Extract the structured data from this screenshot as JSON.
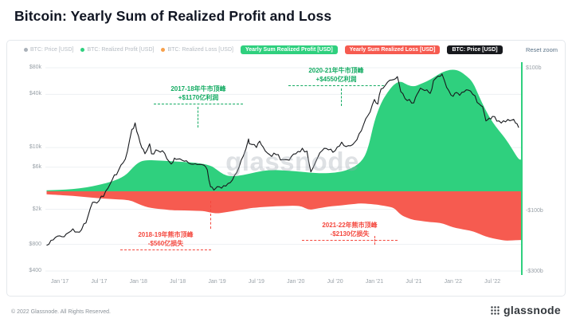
{
  "page": {
    "title": "Bitcoin: Yearly Sum of Realized Profit and Loss",
    "footer_left": "© 2022 Glassnode. All Rights Reserved.",
    "brand": "glassnode"
  },
  "toolbar": {
    "reset_zoom": "Reset zoom"
  },
  "legend": {
    "inactive": [
      {
        "label": "BTC: Price [USD]",
        "dot_color": "#aab1b9"
      },
      {
        "label": "BTC: Realized Profit [USD]",
        "dot_color": "#2fd07e"
      },
      {
        "label": "BTC: Realized Loss [USD]",
        "dot_color": "#f7a04b"
      }
    ],
    "active": [
      {
        "label": "Yearly Sum Realized Profit [USD]",
        "bg": "#2fd07e"
      },
      {
        "label": "Yearly Sum Realized Loss [USD]",
        "bg": "#f65b50"
      },
      {
        "label": "BTC: Price [USD]",
        "bg": "#17191d"
      }
    ]
  },
  "colors": {
    "accent_green": "#2fd07e",
    "loss_red": "#f65b50",
    "price_black": "#17191d",
    "ann_green": "#13ab62",
    "ann_red": "#f4473d",
    "axis_text": "#99a1a8",
    "grid": "#edf0f3",
    "legend_muted": "#b6bcc3",
    "reset_zoom": "#5b7388",
    "panel_border": "#e4e8ec"
  },
  "chart_data": {
    "type": "area",
    "title": "Bitcoin: Yearly Sum of Realized Profit and Loss",
    "watermark": "glassnode",
    "x_axis": {
      "unit": "months since Jan 2017",
      "ticks": [
        {
          "m": 0,
          "label": "Jan '17"
        },
        {
          "m": 6,
          "label": "Jul '17"
        },
        {
          "m": 12,
          "label": "Jan '18"
        },
        {
          "m": 18,
          "label": "Jul '18"
        },
        {
          "m": 24,
          "label": "Jan '19"
        },
        {
          "m": 30,
          "label": "Jul '19"
        },
        {
          "m": 36,
          "label": "Jan '20"
        },
        {
          "m": 42,
          "label": "Jul '20"
        },
        {
          "m": 48,
          "label": "Jan '21"
        },
        {
          "m": 54,
          "label": "Jul '21"
        },
        {
          "m": 60,
          "label": "Jan '22"
        },
        {
          "m": 66,
          "label": "Jul '22"
        }
      ]
    },
    "y_axis_left": {
      "scale": "log",
      "unit": "USD",
      "range": [
        400,
        80000
      ],
      "ticks": [
        {
          "v": 80000,
          "label": "$80k"
        },
        {
          "v": 40000,
          "label": "$40k"
        },
        {
          "v": 10000,
          "label": "$10k"
        },
        {
          "v": 6000,
          "label": "$6k"
        },
        {
          "v": 2000,
          "label": "$2k"
        },
        {
          "v": 800,
          "label": "$800"
        },
        {
          "v": 400,
          "label": "$400"
        }
      ]
    },
    "y_axis_right": {
      "unit": "USD billions",
      "ticks": [
        "$100b",
        "-$100b",
        "-$300b"
      ]
    },
    "series": [
      {
        "name": "BTC: Price [USD]",
        "type": "line",
        "color": "#17191d",
        "unit": "USD",
        "points": [
          [
            -2,
            780
          ],
          [
            -1,
            900
          ],
          [
            0,
            1000
          ],
          [
            1,
            1050
          ],
          [
            2,
            1200
          ],
          [
            3,
            1100
          ],
          [
            4,
            1400
          ],
          [
            5,
            2400
          ],
          [
            6,
            2500
          ],
          [
            7,
            3200
          ],
          [
            8,
            4300
          ],
          [
            9,
            5600
          ],
          [
            10,
            7400
          ],
          [
            11,
            16000
          ],
          [
            11.5,
            19000
          ],
          [
            12,
            13500
          ],
          [
            12.5,
            10000
          ],
          [
            13,
            8500
          ],
          [
            13.7,
            11000
          ],
          [
            14,
            8500
          ],
          [
            15,
            9200
          ],
          [
            16,
            8600
          ],
          [
            17,
            6500
          ],
          [
            17.5,
            7600
          ],
          [
            18,
            7400
          ],
          [
            19,
            7000
          ],
          [
            20,
            6500
          ],
          [
            21,
            6400
          ],
          [
            22,
            6300
          ],
          [
            22.5,
            5600
          ],
          [
            23,
            3600
          ],
          [
            23.5,
            3300
          ],
          [
            24,
            3600
          ],
          [
            25,
            3700
          ],
          [
            26,
            4000
          ],
          [
            27,
            5200
          ],
          [
            28,
            8000
          ],
          [
            28.8,
            12500
          ],
          [
            29,
            11000
          ],
          [
            30,
            10000
          ],
          [
            30.5,
            11800
          ],
          [
            31,
            10200
          ],
          [
            32,
            8300
          ],
          [
            33,
            8300
          ],
          [
            34,
            7300
          ],
          [
            35,
            7200
          ],
          [
            36,
            8500
          ],
          [
            37,
            9800
          ],
          [
            37.7,
            9100
          ],
          [
            38.3,
            5300
          ],
          [
            39,
            6800
          ],
          [
            40,
            9200
          ],
          [
            41,
            9400
          ],
          [
            42,
            9200
          ],
          [
            43,
            11500
          ],
          [
            44,
            10500
          ],
          [
            45,
            11500
          ],
          [
            46,
            15500
          ],
          [
            47,
            23000
          ],
          [
            48,
            35000
          ],
          [
            48.5,
            31000
          ],
          [
            49,
            46000
          ],
          [
            50,
            55000
          ],
          [
            51,
            59000
          ],
          [
            51.5,
            63500
          ],
          [
            52,
            43000
          ],
          [
            53,
            34000
          ],
          [
            54,
            32000
          ],
          [
            54.5,
            40000
          ],
          [
            55,
            47000
          ],
          [
            56,
            45000
          ],
          [
            56.5,
            41000
          ],
          [
            57,
            57000
          ],
          [
            58,
            64000
          ],
          [
            58.3,
            68000
          ],
          [
            59,
            48000
          ],
          [
            60,
            38000
          ],
          [
            60.5,
            42000
          ],
          [
            61,
            39000
          ],
          [
            62,
            45000
          ],
          [
            63,
            40000
          ],
          [
            64,
            31000
          ],
          [
            64.5,
            29000
          ],
          [
            65,
            20000
          ],
          [
            65.5,
            21500
          ],
          [
            66,
            22500
          ],
          [
            67,
            20000
          ],
          [
            68,
            19500
          ],
          [
            69,
            20500
          ],
          [
            69.5,
            19000
          ],
          [
            70,
            16800
          ]
        ]
      },
      {
        "name": "Yearly Sum Realized Profit [USD]",
        "type": "area",
        "color": "#2fd07e",
        "unit": "USD billions",
        "points": [
          [
            -2,
            4
          ],
          [
            0,
            5
          ],
          [
            2,
            8
          ],
          [
            4,
            14
          ],
          [
            6,
            24
          ],
          [
            8,
            36
          ],
          [
            10,
            58
          ],
          [
            11,
            85
          ],
          [
            12,
            108
          ],
          [
            13,
            117
          ],
          [
            15,
            115
          ],
          [
            17,
            112
          ],
          [
            19,
            109
          ],
          [
            21,
            106
          ],
          [
            23,
            97
          ],
          [
            24,
            80
          ],
          [
            25,
            62
          ],
          [
            26,
            55
          ],
          [
            28,
            60
          ],
          [
            30,
            72
          ],
          [
            32,
            80
          ],
          [
            34,
            78
          ],
          [
            36,
            75
          ],
          [
            38,
            70
          ],
          [
            40,
            67
          ],
          [
            42,
            69
          ],
          [
            44,
            79
          ],
          [
            46,
            108
          ],
          [
            47,
            155
          ],
          [
            48,
            265
          ],
          [
            49,
            330
          ],
          [
            50,
            370
          ],
          [
            51,
            400
          ],
          [
            52,
            412
          ],
          [
            53,
            396
          ],
          [
            54,
            390
          ],
          [
            55,
            400
          ],
          [
            56,
            410
          ],
          [
            57,
            424
          ],
          [
            58,
            440
          ],
          [
            59,
            450
          ],
          [
            60,
            455
          ],
          [
            61,
            449
          ],
          [
            62,
            431
          ],
          [
            63,
            408
          ],
          [
            64,
            352
          ],
          [
            65,
            300
          ],
          [
            66,
            258
          ],
          [
            67,
            226
          ],
          [
            68,
            196
          ],
          [
            69,
            158
          ],
          [
            70,
            118
          ]
        ]
      },
      {
        "name": "Yearly Sum Realized Loss [USD]",
        "type": "area",
        "color": "#f65b50",
        "unit": "USD billions",
        "points": [
          [
            -2,
            -2
          ],
          [
            0,
            -3
          ],
          [
            2,
            -4
          ],
          [
            4,
            -6
          ],
          [
            6,
            -8
          ],
          [
            8,
            -10
          ],
          [
            10,
            -11
          ],
          [
            11,
            -14
          ],
          [
            12,
            -22
          ],
          [
            13,
            -30
          ],
          [
            14,
            -35
          ],
          [
            15,
            -38
          ],
          [
            16,
            -40
          ],
          [
            17,
            -43
          ],
          [
            19,
            -44
          ],
          [
            21,
            -45
          ],
          [
            22,
            -46
          ],
          [
            23,
            -52
          ],
          [
            24,
            -56
          ],
          [
            25,
            -52
          ],
          [
            26,
            -48
          ],
          [
            27,
            -44
          ],
          [
            28,
            -40
          ],
          [
            29,
            -36
          ],
          [
            30,
            -33
          ],
          [
            32,
            -30
          ],
          [
            34,
            -28
          ],
          [
            36,
            -27
          ],
          [
            37,
            -30
          ],
          [
            38,
            -42
          ],
          [
            39,
            -38
          ],
          [
            40,
            -34
          ],
          [
            41,
            -30
          ],
          [
            42,
            -28
          ],
          [
            43,
            -26
          ],
          [
            44,
            -24
          ],
          [
            45,
            -22
          ],
          [
            46,
            -20
          ],
          [
            48,
            -23
          ],
          [
            49,
            -26
          ],
          [
            50,
            -30
          ],
          [
            51,
            -34
          ],
          [
            52,
            -62
          ],
          [
            53,
            -76
          ],
          [
            54,
            -86
          ],
          [
            55,
            -90
          ],
          [
            56,
            -95
          ],
          [
            57,
            -98
          ],
          [
            58,
            -100
          ],
          [
            59,
            -112
          ],
          [
            60,
            -126
          ],
          [
            61,
            -134
          ],
          [
            62,
            -141
          ],
          [
            63,
            -150
          ],
          [
            64,
            -166
          ],
          [
            65,
            -184
          ],
          [
            66,
            -196
          ],
          [
            67,
            -204
          ],
          [
            68,
            -213
          ],
          [
            69,
            -211
          ],
          [
            70,
            -208
          ]
        ]
      }
    ],
    "annotations": [
      {
        "id": "bull-2017-18",
        "line1": "2017-18年牛市顶峰",
        "line2": "+$1170亿利润",
        "color": "green"
      },
      {
        "id": "bull-2020-21",
        "line1": "2020-21年牛市顶峰",
        "line2": "+$4550亿利润",
        "color": "green"
      },
      {
        "id": "bear-2018-19",
        "line1": "2018-19年熊市顶峰",
        "line2": "-$560亿损失",
        "color": "red"
      },
      {
        "id": "bear-2021-22",
        "line1": "2021-22年熊市顶峰",
        "line2": "-$2130亿损失",
        "color": "red"
      }
    ]
  }
}
